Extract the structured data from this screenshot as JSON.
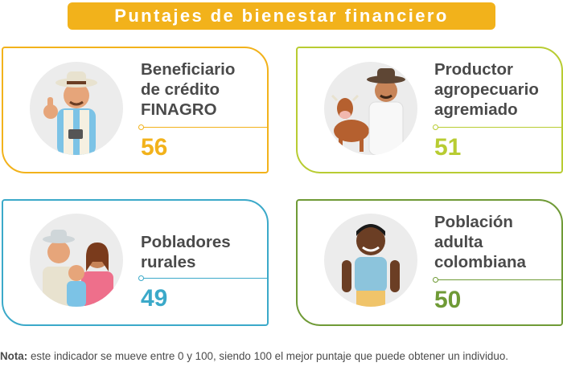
{
  "title": "Puntajes de bienestar financiero",
  "cards": [
    {
      "label": "Beneficiario\nde crédito\nFINAGRO",
      "score": "56",
      "color": "#f2b21b",
      "illustration": "farmer-thumbs-up-icon"
    },
    {
      "label": "Productor\nagropecuario\nagremiado",
      "score": "51",
      "color": "#b8cc32",
      "illustration": "rancher-with-cow-icon"
    },
    {
      "label": "Pobladores\nrurales",
      "score": "49",
      "color": "#3ba9c9",
      "illustration": "rural-family-icon"
    },
    {
      "label": "Población\nadulta\ncolombiana",
      "score": "50",
      "color": "#6f9a36",
      "illustration": "adult-man-icon"
    }
  ],
  "note": {
    "prefix": "Nota:",
    "text": " este indicador se mueve entre 0 y 100, siendo 100 el mejor puntaje que puede obtener un individuo."
  }
}
